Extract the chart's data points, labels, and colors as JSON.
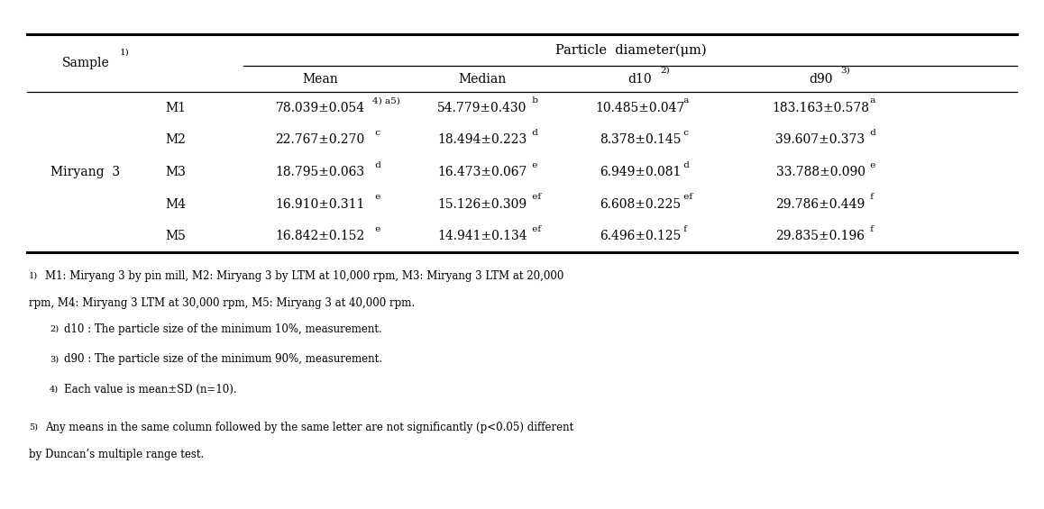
{
  "title": "Particle  diameter(μm)",
  "group_label": "Miryang  3",
  "rows": [
    {
      "sample": "M1",
      "mean": "78.039±0.054",
      "mean_sup": "4) a5)",
      "median": "54.779±0.430",
      "median_sup": " b",
      "d10": "10.485±0.047",
      "d10_sup": " a",
      "d90": "183.163±0.578",
      "d90_sup": " a"
    },
    {
      "sample": "M2",
      "mean": "22.767±0.270",
      "mean_sup": " c",
      "median": "18.494±0.223",
      "median_sup": " d",
      "d10": "8.378±0.145",
      "d10_sup": " c",
      "d90": "39.607±0.373",
      "d90_sup": " d"
    },
    {
      "sample": "M3",
      "mean": "18.795±0.063",
      "mean_sup": " d",
      "median": "16.473±0.067",
      "median_sup": " e",
      "d10": "6.949±0.081",
      "d10_sup": " d",
      "d90": "33.788±0.090",
      "d90_sup": " e"
    },
    {
      "sample": "M4",
      "mean": "16.910±0.311",
      "mean_sup": " e",
      "median": "15.126±0.309",
      "median_sup": " ef",
      "d10": "6.608±0.225",
      "d10_sup": " ef",
      "d90": "29.786±0.449",
      "d90_sup": " f"
    },
    {
      "sample": "M5",
      "mean": "16.842±0.152",
      "mean_sup": " e",
      "median": "14.941±0.134",
      "median_sup": " ef",
      "d10": "6.496±0.125",
      "d10_sup": " f",
      "d90": "29.835±0.196",
      "d90_sup": " f"
    }
  ],
  "footnote1": "M1: Miryang 3 by pin mill, M2: Miryang 3 by LTM at 10,000 rpm, M3: Miryang 3 LTM at 20,000",
  "footnote1b": "rpm, M4: Miryang 3 LTM at 30,000 rpm, M5: Miryang 3 at 40,000 rpm.",
  "footnote2": "d10 : The particle size of the minimum 10%, measurement.",
  "footnote3": "d90 : The particle size of the minimum 90%, measurement.",
  "footnote4": "Each value is mean±SD (n=10).",
  "footnote5": "Any means in the same column followed by the same letter are not significantly (p<0.05) different",
  "footnote5b": "by Duncan’s multiple range test.",
  "bg_color": "#ffffff",
  "font_size": 10.0
}
